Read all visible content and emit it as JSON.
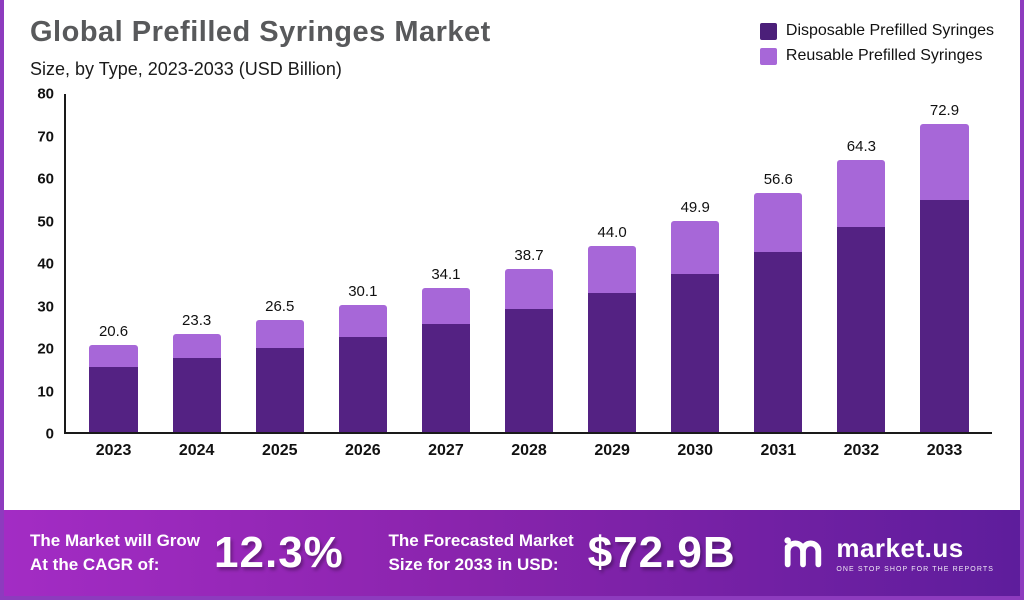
{
  "header": {
    "title": "Global Prefilled Syringes Market",
    "subtitle": "Size, by Type, 2023-2033 (USD Billion)"
  },
  "legend": [
    {
      "label": "Disposable Prefilled Syringes",
      "color": "#4b1f79"
    },
    {
      "label": "Reusable Prefilled Syringes",
      "color": "#a767d8"
    }
  ],
  "chart_data": {
    "type": "bar",
    "stacked": true,
    "title": "Global Prefilled Syringes Market Size, by Type, 2023-2033 (USD Billion)",
    "categories": [
      "2023",
      "2024",
      "2025",
      "2026",
      "2027",
      "2028",
      "2029",
      "2030",
      "2031",
      "2032",
      "2033"
    ],
    "series": [
      {
        "name": "Disposable Prefilled Syringes",
        "color": "#542283",
        "values": [
          15.5,
          17.5,
          20.0,
          22.5,
          25.5,
          29.0,
          33.0,
          37.5,
          42.5,
          48.5,
          55.0
        ]
      },
      {
        "name": "Reusable Prefilled Syringes",
        "color": "#a767d8",
        "values": [
          5.1,
          5.8,
          6.5,
          7.6,
          8.6,
          9.7,
          11.0,
          12.4,
          14.1,
          15.8,
          17.9
        ]
      }
    ],
    "totals": [
      20.6,
      23.3,
      26.5,
      30.1,
      34.1,
      38.7,
      44.0,
      49.9,
      56.6,
      64.3,
      72.9
    ],
    "total_labels": [
      "20.6",
      "23.3",
      "26.5",
      "30.1",
      "34.1",
      "38.7",
      "44.0",
      "49.9",
      "56.6",
      "64.3",
      "72.9"
    ],
    "ylim": [
      0,
      80
    ],
    "yticks": [
      0,
      10,
      20,
      30,
      40,
      50,
      60,
      70,
      80
    ],
    "grid": false,
    "legend_position": "top-right"
  },
  "banner": {
    "grow_line1": "The Market will Grow",
    "grow_line2": "At the CAGR of:",
    "cagr_value": "12.3%",
    "forecast_line1": "The Forecasted Market",
    "forecast_line2": "Size for 2033 in USD:",
    "forecast_value": "$72.9B",
    "brand_name": "market.us",
    "brand_tagline": "ONE STOP SHOP FOR THE REPORTS"
  }
}
